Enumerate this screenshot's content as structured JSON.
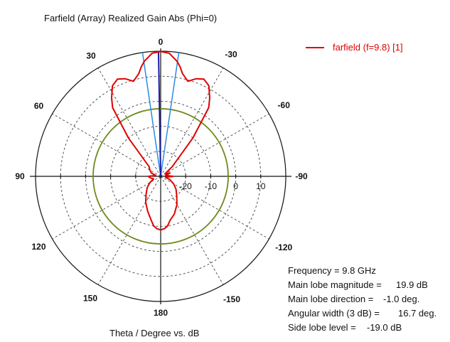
{
  "chart_data": {
    "type": "polar",
    "title": "Farfield (Array) Realized Gain Abs (Phi=0)",
    "xlabel": "Theta / Degree vs. dB",
    "radial_range_db": [
      -30,
      20
    ],
    "radial_ticks": [
      "-20",
      "-10",
      "0",
      "10"
    ],
    "angle_ticks": [
      "0",
      "30",
      "60",
      "90",
      "120",
      "150",
      "180",
      "-150",
      "-120",
      "-90",
      "-60",
      "-30"
    ],
    "series": [
      {
        "name": "farfield (f=9.8) [1]",
        "color": "#e00000",
        "theta_deg": [
          0,
          4,
          8,
          10,
          12,
          16,
          20,
          24,
          28,
          32,
          35,
          40,
          50,
          60,
          70,
          80,
          90,
          100,
          110,
          120,
          130,
          140,
          150,
          160,
          168,
          172,
          176,
          180,
          184,
          188,
          192,
          200,
          210,
          220,
          230,
          240,
          250,
          260,
          270,
          280,
          290,
          300,
          310,
          320,
          325,
          328,
          332,
          336,
          340,
          344,
          348,
          350,
          352,
          356,
          360
        ],
        "gain_db": [
          19.9,
          19.3,
          16.5,
          14.5,
          12.0,
          9.5,
          11.5,
          12.5,
          11.0,
          7.0,
          3.5,
          -10,
          -24,
          -28,
          -26,
          -28,
          -25,
          -28,
          -26,
          -24,
          -22,
          -20,
          -17,
          -14,
          -12,
          -10,
          -9,
          -8.6,
          -9,
          -10,
          -12,
          -15,
          -18,
          -21,
          -23,
          -25,
          -27,
          -26,
          -25,
          -28,
          -26,
          -25,
          -24,
          -10,
          3.5,
          7.0,
          11.0,
          12.5,
          11.5,
          9.5,
          12.0,
          14.5,
          16.5,
          19.3,
          19.9
        ]
      }
    ],
    "reference_circle_db": -3,
    "reference_circle_color": "#6e8b1e",
    "beam_lines_deg": [
      -8.35,
      8.35
    ],
    "beam_line_color": "#2b8be6",
    "main_lobe_direction_deg": -1.0,
    "main_lobe_color": "#1a1aa8"
  },
  "info": {
    "frequency": {
      "label": "Frequency = 9.8 GHz",
      "value": ""
    },
    "main_lobe_magnitude": {
      "label": "Main lobe magnitude =",
      "value": "19.9 dB"
    },
    "main_lobe_direction": {
      "label": "Main lobe direction =",
      "value": "-1.0 deg."
    },
    "angular_width": {
      "label": "Angular width (3 dB) =",
      "value": "16.7 deg."
    },
    "side_lobe_level": {
      "label": "Side lobe level =",
      "value": "-19.0 dB"
    }
  },
  "colors": {
    "trace": "#e00000",
    "grid": "#444444",
    "axis": "#111111"
  }
}
